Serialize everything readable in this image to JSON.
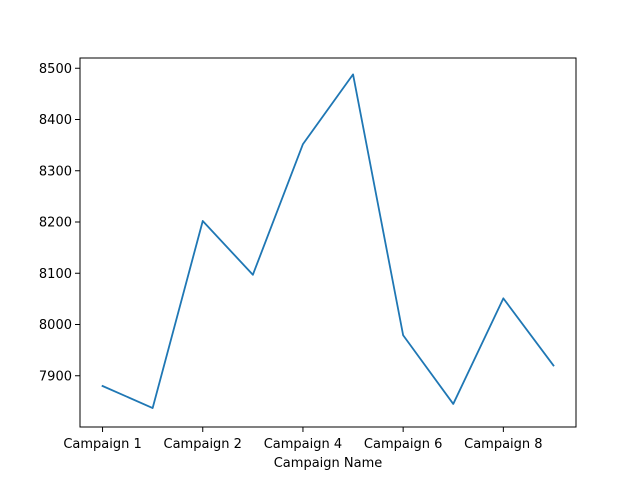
{
  "chart_data": {
    "type": "line",
    "title": "",
    "xlabel": "Campaign Name",
    "ylabel": "",
    "ylim": [
      7800,
      8520
    ],
    "grid": false,
    "yticks": [
      7900,
      8000,
      8100,
      8200,
      8300,
      8400,
      8500
    ],
    "xtick_labels": [
      "Campaign 1",
      "Campaign 2",
      "Campaign 4",
      "Campaign 6",
      "Campaign 8"
    ],
    "xtick_positions": [
      0,
      2,
      4,
      6,
      8
    ],
    "series": [
      {
        "color": "#1f77b4",
        "x": [
          0,
          1,
          2,
          3,
          4,
          5,
          6,
          7,
          8,
          9
        ],
        "values": [
          7880,
          7837,
          8202,
          8097,
          8352,
          8488,
          7979,
          7845,
          8051,
          7920
        ]
      }
    ]
  }
}
